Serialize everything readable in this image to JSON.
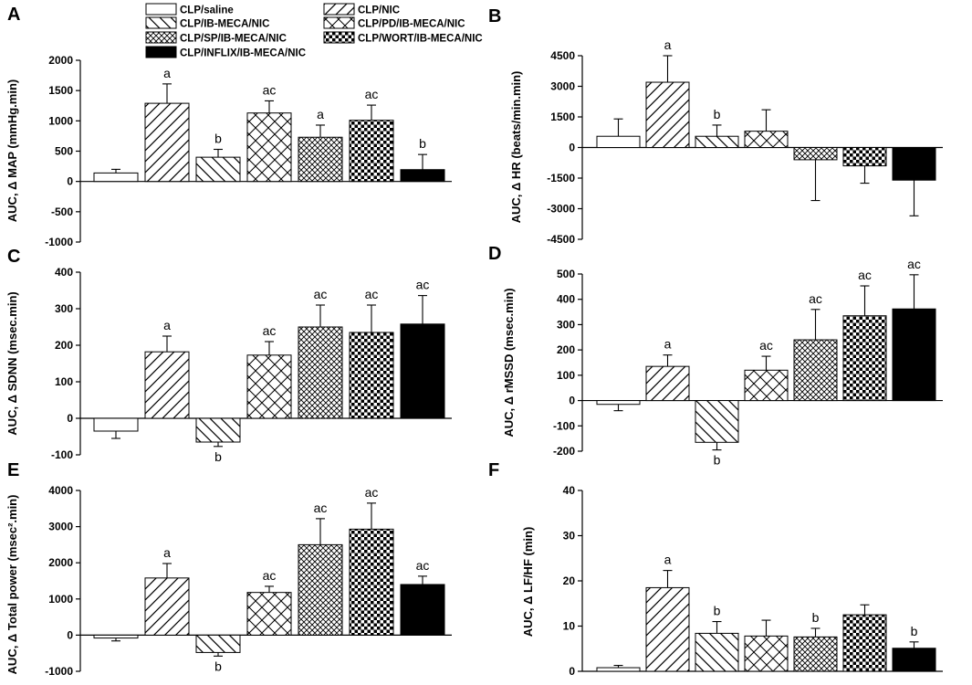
{
  "legend": [
    {
      "label": "CLP/saline",
      "pattern": "white"
    },
    {
      "label": "CLP/NIC",
      "pattern": "fwd"
    },
    {
      "label": "CLP/IB-MECA/NIC",
      "pattern": "back"
    },
    {
      "label": "CLP/PD/IB-MECA/NIC",
      "pattern": "cross"
    },
    {
      "label": "CLP/SP/IB-MECA/NIC",
      "pattern": "dcross"
    },
    {
      "label": "CLP/WORT/IB-MECA/NIC",
      "pattern": "checker"
    },
    {
      "label": "CLP/INFLIX/IB-MECA/NIC",
      "pattern": "black"
    }
  ],
  "colors": {
    "ink": "#000000",
    "background": "#ffffff"
  },
  "chart_data": [
    {
      "panel": "A",
      "type": "bar",
      "ylabel": "AUC, Δ MAP (mmHg.min)",
      "ylim": [
        -1000,
        2000
      ],
      "yticks": [
        -1000,
        -500,
        0,
        500,
        1000,
        1500,
        2000
      ],
      "categories": [
        "CLP/saline",
        "CLP/NIC",
        "CLP/IB-MECA/NIC",
        "CLP/PD/IB-MECA/NIC",
        "CLP/SP/IB-MECA/NIC",
        "CLP/WORT/IB-MECA/NIC",
        "CLP/INFLIX/IB-MECA/NIC"
      ],
      "values": [
        140,
        1290,
        400,
        1130,
        730,
        1010,
        195
      ],
      "errors": [
        60,
        320,
        130,
        200,
        200,
        250,
        250
      ],
      "annotations": [
        "",
        "a",
        "b",
        "ac",
        "a",
        "ac",
        "b"
      ]
    },
    {
      "panel": "B",
      "type": "bar",
      "ylabel": "AUC, Δ HR (beats/min.min)",
      "ylim": [
        -4500,
        4500
      ],
      "yticks": [
        -4500,
        -3000,
        -1500,
        0,
        1500,
        3000,
        4500
      ],
      "categories": [
        "CLP/saline",
        "CLP/NIC",
        "CLP/IB-MECA/NIC",
        "CLP/PD/IB-MECA/NIC",
        "CLP/SP/IB-MECA/NIC",
        "CLP/WORT/IB-MECA/NIC",
        "CLP/INFLIX/IB-MECA/NIC"
      ],
      "values": [
        550,
        3200,
        550,
        800,
        -600,
        -900,
        -1600
      ],
      "errors": [
        850,
        1300,
        550,
        1050,
        2000,
        850,
        1750
      ],
      "annotations": [
        "",
        "a",
        "b",
        "",
        "",
        "",
        ""
      ]
    },
    {
      "panel": "C",
      "type": "bar",
      "ylabel": "AUC, Δ SDNN (msec.min)",
      "ylim": [
        -100,
        400
      ],
      "yticks": [
        -100,
        0,
        100,
        200,
        300,
        400
      ],
      "categories": [
        "CLP/saline",
        "CLP/NIC",
        "CLP/IB-MECA/NIC",
        "CLP/PD/IB-MECA/NIC",
        "CLP/SP/IB-MECA/NIC",
        "CLP/WORT/IB-MECA/NIC",
        "CLP/INFLIX/IB-MECA/NIC"
      ],
      "values": [
        -35,
        182,
        -65,
        173,
        250,
        235,
        258
      ],
      "errors": [
        20,
        43,
        12,
        37,
        60,
        75,
        78
      ],
      "annotations": [
        "",
        "a",
        "b",
        "ac",
        "ac",
        "ac",
        "ac"
      ]
    },
    {
      "panel": "D",
      "type": "bar",
      "ylabel": "AUC, Δ rMSSD (msec.min)",
      "ylim": [
        -200,
        500
      ],
      "yticks": [
        -200,
        -100,
        0,
        100,
        200,
        300,
        400,
        500
      ],
      "categories": [
        "CLP/saline",
        "CLP/NIC",
        "CLP/IB-MECA/NIC",
        "CLP/PD/IB-MECA/NIC",
        "CLP/SP/IB-MECA/NIC",
        "CLP/WORT/IB-MECA/NIC",
        "CLP/INFLIX/IB-MECA/NIC"
      ],
      "values": [
        -15,
        135,
        -165,
        120,
        240,
        335,
        362
      ],
      "errors": [
        25,
        45,
        30,
        55,
        120,
        118,
        135
      ],
      "annotations": [
        "",
        "a",
        "b",
        "ac",
        "ac",
        "ac",
        "ac"
      ]
    },
    {
      "panel": "E",
      "type": "bar",
      "ylabel": "AUC, Δ Total power (msec².min)",
      "ylim": [
        -1000,
        4000
      ],
      "yticks": [
        -1000,
        0,
        1000,
        2000,
        3000,
        4000
      ],
      "categories": [
        "CLP/saline",
        "CLP/NIC",
        "CLP/IB-MECA/NIC",
        "CLP/PD/IB-MECA/NIC",
        "CLP/SP/IB-MECA/NIC",
        "CLP/WORT/IB-MECA/NIC",
        "CLP/INFLIX/IB-MECA/NIC"
      ],
      "values": [
        -80,
        1580,
        -480,
        1180,
        2500,
        2930,
        1400
      ],
      "errors": [
        80,
        400,
        100,
        170,
        720,
        720,
        230
      ],
      "annotations": [
        "",
        "a",
        "b",
        "ac",
        "ac",
        "ac",
        "ac"
      ]
    },
    {
      "panel": "F",
      "type": "bar",
      "ylabel": "AUC, Δ LF/HF (min)",
      "ylim": [
        0,
        40
      ],
      "yticks": [
        0,
        10,
        20,
        30,
        40
      ],
      "categories": [
        "CLP/saline",
        "CLP/NIC",
        "CLP/IB-MECA/NIC",
        "CLP/PD/IB-MECA/NIC",
        "CLP/SP/IB-MECA/NIC",
        "CLP/WORT/IB-MECA/NIC",
        "CLP/INFLIX/IB-MECA/NIC"
      ],
      "values": [
        0.8,
        18.5,
        8.4,
        7.8,
        7.6,
        12.5,
        5.1
      ],
      "errors": [
        0.5,
        3.8,
        2.6,
        3.5,
        1.9,
        2.2,
        1.4
      ],
      "annotations": [
        "",
        "a",
        "b",
        "",
        "b",
        "",
        "b"
      ]
    }
  ]
}
